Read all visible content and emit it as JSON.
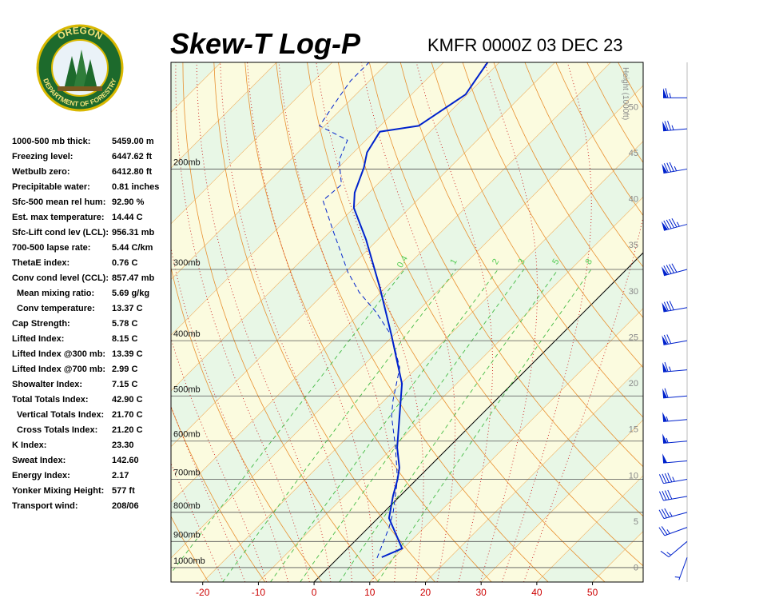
{
  "logo": {
    "top_text": "OREGON",
    "bottom_text": "DEPARTMENT OF FORESTRY"
  },
  "indices": [
    {
      "label": "1000-500 mb thick:",
      "value": "5459.00 m"
    },
    {
      "label": "Freezing level:",
      "value": "6447.62 ft"
    },
    {
      "label": "Wetbulb zero:",
      "value": "6412.80 ft"
    },
    {
      "label": "Precipitable water:",
      "value": "0.81 inches"
    },
    {
      "label": "Sfc-500 mean rel hum:",
      "value": "92.90 %"
    },
    {
      "label": "Est. max temperature:",
      "value": "14.44 C"
    },
    {
      "label": "Sfc-Lift cond lev (LCL):",
      "value": "956.31 mb"
    },
    {
      "label": "700-500 lapse rate:",
      "value": "5.44 C/km"
    },
    {
      "label": "ThetaE index:",
      "value": "0.76 C"
    },
    {
      "label": "Conv cond level (CCL):",
      "value": "857.47 mb",
      "sub": [
        {
          "label": "Mean mixing ratio:",
          "value": "5.69 g/kg"
        },
        {
          "label": "Conv temperature:",
          "value": "13.37 C"
        }
      ]
    },
    {
      "label": "Cap Strength:",
      "value": "5.78 C"
    },
    {
      "label": "Lifted Index:",
      "value": "8.15 C"
    },
    {
      "label": "Lifted Index @300 mb:",
      "value": "13.39 C"
    },
    {
      "label": "Lifted Index @700 mb:",
      "value": "2.99 C"
    },
    {
      "label": "Showalter Index:",
      "value": "7.15 C"
    },
    {
      "label": "Total Totals Index:",
      "value": "42.90 C",
      "sub": [
        {
          "label": "Vertical Totals Index:",
          "value": "21.70 C"
        },
        {
          "label": "Cross Totals Index:",
          "value": "21.20 C"
        }
      ]
    },
    {
      "label": "K Index:",
      "value": "23.30"
    },
    {
      "label": "Sweat Index:",
      "value": "142.60"
    },
    {
      "label": "Energy Index:",
      "value": "2.17"
    },
    {
      "label": "Yonker Mixing Height:",
      "value": "577 ft"
    },
    {
      "label": "Transport wind:",
      "value": "208/06"
    }
  ],
  "chart_data": {
    "type": "skewt",
    "title": "Skew-T Log-P",
    "subtitle": "KMFR 0000Z 03 DEC 23",
    "xlim": [
      -25.7,
      59.1
    ],
    "xticks": [
      -20,
      -10,
      0,
      10,
      20,
      30,
      40,
      50
    ],
    "xtick_color": "#cc0000",
    "ylim": [
      1060,
      130
    ],
    "log_y": true,
    "yticks": [
      {
        "value": 1000,
        "label": "1000mb"
      },
      {
        "value": 900,
        "label": "900mb"
      },
      {
        "value": 800,
        "label": "800mb"
      },
      {
        "value": 700,
        "label": "700mb"
      },
      {
        "value": 600,
        "label": "600mb"
      },
      {
        "value": 500,
        "label": "500mb"
      },
      {
        "value": 400,
        "label": "400mb"
      },
      {
        "value": 300,
        "label": "300mb"
      },
      {
        "value": 200,
        "label": "200mb"
      }
    ],
    "y2_label": "Height (1000ft)",
    "y2lim": [
      -1.6,
      54.8
    ],
    "y2ticks": [
      0,
      5,
      10,
      15,
      20,
      25,
      30,
      35,
      40,
      45,
      50
    ],
    "mixing_ratios": [
      0.4,
      1,
      2,
      3,
      5,
      8
    ],
    "series": [
      {
        "name": "Temperature",
        "color": "#0022cc",
        "dashed": false,
        "pressure": [
          959,
          926,
          819,
          748,
          701,
          668,
          616,
          476,
          392,
          323,
          266,
          234,
          220,
          199,
          187,
          172,
          168,
          148,
          130
        ],
        "values": [
          7.7,
          9.8,
          2.0,
          -1.3,
          -3.4,
          -5.2,
          -9.2,
          -19.8,
          -30.3,
          -41.0,
          -52.1,
          -60.0,
          -62.6,
          -65.4,
          -67.6,
          -69.0,
          -63.1,
          -60.3,
          -62.1
        ]
      },
      {
        "name": "Dewpoint",
        "color": "#0022cc",
        "dashed": true,
        "pressure": [
          962,
          851,
          798,
          701,
          616,
          542,
          508,
          446,
          392,
          356,
          329,
          303,
          284,
          258,
          227,
          213,
          193,
          178,
          168,
          149,
          140,
          130
        ],
        "values": [
          7.0,
          3.7,
          1.6,
          -3.4,
          -9.5,
          -15.9,
          -18.5,
          -23.1,
          -30.3,
          -37.4,
          -43.9,
          -49.6,
          -53.5,
          -59.3,
          -66.9,
          -66.4,
          -71.2,
          -73.3,
          -80.9,
          -82.6,
          -83.4,
          -83.4
        ]
      }
    ],
    "wind": {
      "color": "#0022cc",
      "pressure": [
        960,
        900,
        850,
        800,
        750,
        700,
        650,
        600,
        550,
        500,
        450,
        400,
        350,
        300,
        250,
        200,
        170,
        150
      ],
      "direction": [
        200,
        230,
        250,
        255,
        260,
        260,
        265,
        265,
        265,
        265,
        265,
        260,
        260,
        255,
        255,
        260,
        265,
        270
      ],
      "speed": [
        5,
        15,
        25,
        35,
        40,
        45,
        50,
        55,
        55,
        60,
        65,
        70,
        80,
        90,
        95,
        85,
        75,
        65
      ]
    }
  }
}
